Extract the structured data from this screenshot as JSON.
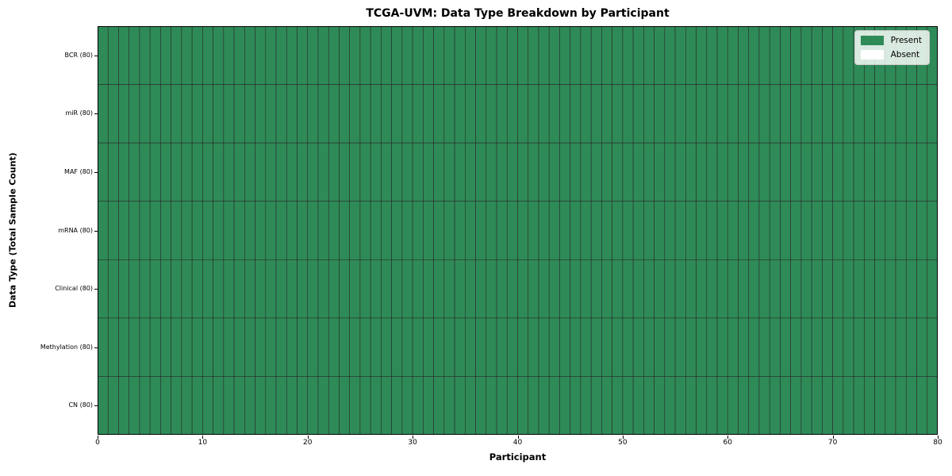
{
  "chart_data": {
    "type": "heatmap",
    "title": "TCGA-UVM: Data Type Breakdown by Participant",
    "xlabel": "Participant",
    "ylabel": "Data Type (Total Sample Count)",
    "xlim": [
      0,
      80
    ],
    "x_ticks": [
      0,
      10,
      20,
      30,
      40,
      50,
      60,
      70,
      80
    ],
    "n_participants": 80,
    "rows": [
      "BCR (80)",
      "miR (80)",
      "MAF (80)",
      "mRNA (80)",
      "Clinical (80)",
      "Methylation (80)",
      "CN (80)"
    ],
    "series": [
      {
        "name": "BCR (80)",
        "present_count": 80,
        "absent_count": 0
      },
      {
        "name": "miR (80)",
        "present_count": 80,
        "absent_count": 0
      },
      {
        "name": "MAF (80)",
        "present_count": 80,
        "absent_count": 0
      },
      {
        "name": "mRNA (80)",
        "present_count": 80,
        "absent_count": 0
      },
      {
        "name": "Clinical (80)",
        "present_count": 80,
        "absent_count": 0
      },
      {
        "name": "Methylation (80)",
        "present_count": 80,
        "absent_count": 0
      },
      {
        "name": "CN (80)",
        "present_count": 80,
        "absent_count": 0
      }
    ],
    "legend": [
      {
        "label": "Present",
        "color": "#2e8b57"
      },
      {
        "label": "Absent",
        "color": "#ffffff"
      }
    ],
    "legend_position": "upper right",
    "colors": {
      "present": "#2e8b57",
      "absent": "#ffffff",
      "cell_border": "#2a2a2a",
      "frame": "#000000"
    },
    "grid": "cell-borders"
  }
}
